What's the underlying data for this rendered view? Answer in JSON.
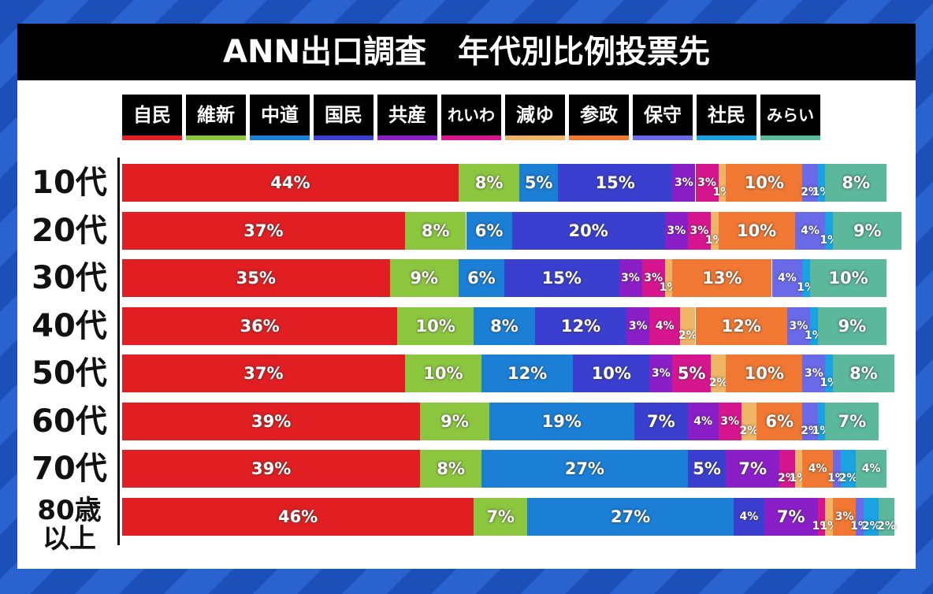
{
  "chart_data": {
    "type": "stacked-bar",
    "orientation": "horizontal",
    "title": "ANN出口調査　年代別比例投票先",
    "categories": [
      "10代",
      "20代",
      "30代",
      "40代",
      "50代",
      "60代",
      "70代",
      "80歳以上"
    ],
    "series": [
      {
        "name": "自民",
        "color": "#e11f22",
        "values": [
          44,
          37,
          35,
          36,
          37,
          39,
          39,
          46
        ],
        "value_labels": [
          "44%",
          "37%",
          "35%",
          "36%",
          "37%",
          "39%",
          "39%",
          "46%"
        ]
      },
      {
        "name": "維新",
        "color": "#8cc63f",
        "values": [
          8,
          8,
          9,
          10,
          10,
          9,
          8,
          7
        ],
        "value_labels": [
          "8%",
          "8%",
          "9%",
          "10%",
          "10%",
          "9%",
          "8%",
          "7%"
        ]
      },
      {
        "name": "中道",
        "color": "#1b7fd6",
        "values": [
          5,
          6,
          6,
          8,
          12,
          19,
          27,
          27
        ],
        "value_labels": [
          "5%",
          "6%",
          "6%",
          "8%",
          "12%",
          "19%",
          "27%",
          "27%"
        ]
      },
      {
        "name": "国民",
        "color": "#3a3fcf",
        "values": [
          15,
          20,
          15,
          12,
          10,
          7,
          5,
          4
        ],
        "value_labels": [
          "15%",
          "20%",
          "15%",
          "12%",
          "10%",
          "7%",
          "5%",
          "4%"
        ]
      },
      {
        "name": "共産",
        "color": "#8a1fc8",
        "values": [
          3,
          3,
          3,
          3,
          3,
          4,
          7,
          7
        ],
        "value_labels": [
          "3%",
          "3%",
          "3%",
          "3%",
          "3%",
          "4%",
          "7%",
          "7%"
        ]
      },
      {
        "name": "れいわ",
        "color": "#d6168f",
        "values": [
          3,
          3,
          3,
          4,
          5,
          3,
          2,
          1
        ],
        "value_labels": [
          "3%",
          "3%",
          "3%",
          "4%",
          "5%",
          "3%",
          "2%",
          "1%"
        ]
      },
      {
        "name": "減ゆ",
        "color": "#f0b466",
        "values": [
          1,
          1,
          1,
          2,
          2,
          2,
          1,
          1
        ],
        "value_labels": [
          "1%",
          "1%",
          "1%",
          "2%",
          "2%",
          "2%",
          "1%",
          "1%"
        ]
      },
      {
        "name": "参政",
        "color": "#f07832",
        "values": [
          10,
          10,
          13,
          12,
          10,
          6,
          4,
          3
        ],
        "value_labels": [
          "10%",
          "10%",
          "13%",
          "12%",
          "10%",
          "6%",
          "4%",
          "3%"
        ]
      },
      {
        "name": "保守",
        "color": "#6a6ae8",
        "values": [
          2,
          4,
          4,
          3,
          3,
          2,
          1,
          1
        ],
        "value_labels": [
          "2%",
          "4%",
          "4%",
          "3%",
          "3%",
          "2%",
          "1%",
          "1%"
        ]
      },
      {
        "name": "社民",
        "color": "#1aa3e0",
        "values": [
          1,
          1,
          1,
          1,
          1,
          1,
          2,
          2
        ],
        "value_labels": [
          "1%",
          "1%",
          "1%",
          "1%",
          "1%",
          "1%",
          "2%",
          "2%"
        ]
      },
      {
        "name": "みらい",
        "color": "#5bb89a",
        "values": [
          8,
          9,
          10,
          9,
          8,
          7,
          4,
          2
        ],
        "value_labels": [
          "8%",
          "9%",
          "10%",
          "9%",
          "8%",
          "7%",
          "4%",
          "2%"
        ]
      }
    ]
  }
}
